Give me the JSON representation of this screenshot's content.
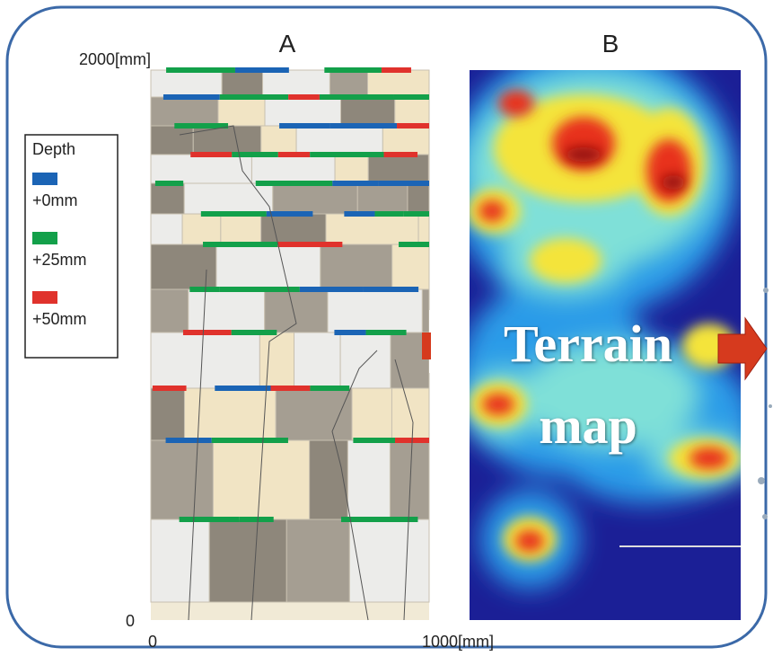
{
  "panel_a": {
    "title": "A",
    "y_top_label": "2000[mm]",
    "y_bottom_label": "0",
    "x_left_label": "0",
    "x_right_label": "1000[mm]"
  },
  "legend": {
    "title": "Depth",
    "items": [
      {
        "label": "+0mm",
        "color": "#1b64b5"
      },
      {
        "label": "+25mm",
        "color": "#13a04a"
      },
      {
        "label": "+50mm",
        "color": "#e0322c"
      }
    ]
  },
  "panel_b": {
    "title": "B",
    "overlay": [
      "Terrain",
      "map"
    ]
  }
}
